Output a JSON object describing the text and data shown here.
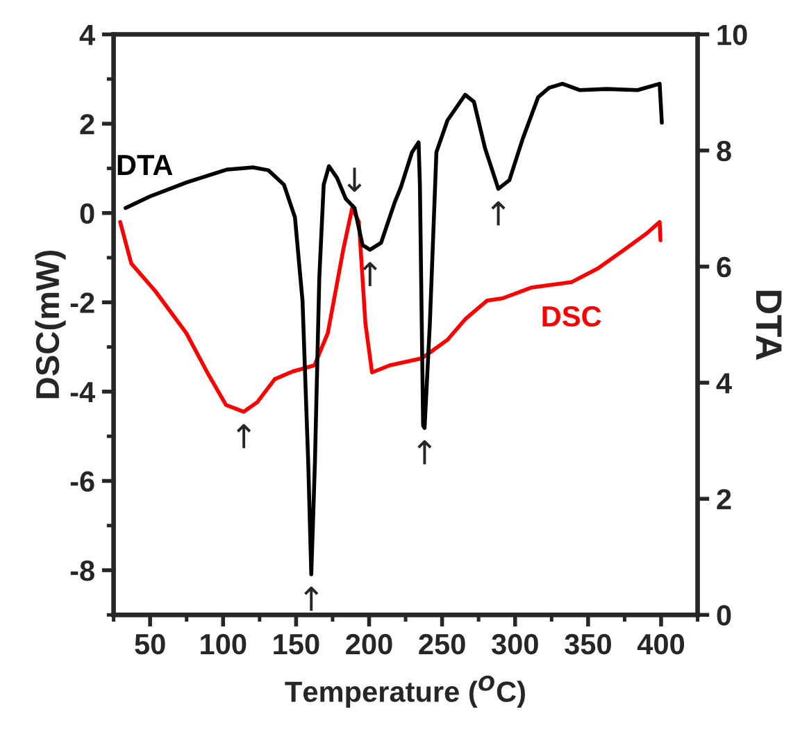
{
  "chart_data": {
    "type": "line",
    "xlabel": "Temperature ($^{O}$C)",
    "ylabel": "DSC(mW)",
    "y2label": "DTA",
    "xlim": [
      25,
      425
    ],
    "xticks": [
      50,
      100,
      150,
      200,
      250,
      300,
      350,
      400
    ],
    "ylim": [
      -9,
      4
    ],
    "yticks": [
      -8,
      -6,
      -4,
      -2,
      0,
      2,
      4
    ],
    "y2lim": [
      0,
      10
    ],
    "y2ticks": [
      0,
      2,
      4,
      6,
      8,
      10
    ],
    "grid": false,
    "legend": false,
    "series": [
      {
        "name": "DTA",
        "color": "#000000",
        "axis": "y2",
        "x": [
          33.2,
          50,
          75,
          102.3,
          120.5,
          131,
          141.7,
          149.2,
          154.4,
          158.3,
          160.4,
          162.9,
          165.9,
          168.9,
          172.5,
          178,
          184,
          190,
          195.5,
          200.6,
          208.2,
          217.3,
          221.8,
          229.4,
          233.9,
          234.8,
          237,
          238,
          241.6,
          246.1,
          253.7,
          265.8,
          271.8,
          279.4,
          288.5,
          296.1,
          305.2,
          315.8,
          323.3,
          332.4,
          344.5,
          362.7,
          383.9,
          399,
          400.5
        ],
        "values": [
          7.01,
          7.21,
          7.45,
          7.67,
          7.71,
          7.66,
          7.41,
          6.85,
          5.41,
          2.63,
          0.7,
          2.63,
          5.81,
          7.41,
          7.73,
          7.53,
          7.17,
          7.01,
          6.37,
          6.29,
          6.41,
          7.09,
          7.37,
          7.97,
          8.14,
          7.41,
          3.26,
          3.22,
          5.01,
          7.97,
          8.52,
          8.96,
          8.84,
          8.04,
          7.34,
          7.49,
          8.2,
          8.92,
          9.08,
          9.15,
          9.04,
          9.06,
          9.04,
          9.15,
          8.48
        ]
      },
      {
        "name": "DSC",
        "color": "#ff0000",
        "x": [
          29.5,
          37.1,
          53.6,
          74.8,
          90,
          102,
          114.2,
          123.3,
          135.4,
          147.5,
          162.6,
          171.7,
          182.3,
          188.4,
          193,
          197.5,
          202,
          214.2,
          235.4,
          238,
          253.7,
          265.8,
          280.9,
          291.5,
          311.2,
          338.5,
          356.7,
          374.8,
          390,
          399,
          399.6
        ],
        "values": [
          -0.2,
          -1.13,
          -1.75,
          -2.69,
          -3.62,
          -4.3,
          -4.45,
          -4.24,
          -3.72,
          -3.55,
          -3.41,
          -2.69,
          -0.82,
          0.11,
          -0.2,
          -2.48,
          -3.57,
          -3.41,
          -3.26,
          -3.21,
          -2.84,
          -2.38,
          -1.96,
          -1.91,
          -1.67,
          -1.55,
          -1.24,
          -0.82,
          -0.46,
          -0.2,
          -0.61
        ]
      }
    ],
    "annotations": [
      {
        "text": "↑",
        "x": 114.2,
        "y": -4.45
      },
      {
        "text": "↑",
        "x": 160.4,
        "y": -8.09
      },
      {
        "text": "↓",
        "x": 190,
        "y": 0.11
      },
      {
        "text": "↑",
        "x": 200.6,
        "y": -0.82
      },
      {
        "text": "↑",
        "x": 238,
        "y": -4.81
      },
      {
        "text": "↑",
        "x": 288.5,
        "y": 0.54
      }
    ]
  }
}
